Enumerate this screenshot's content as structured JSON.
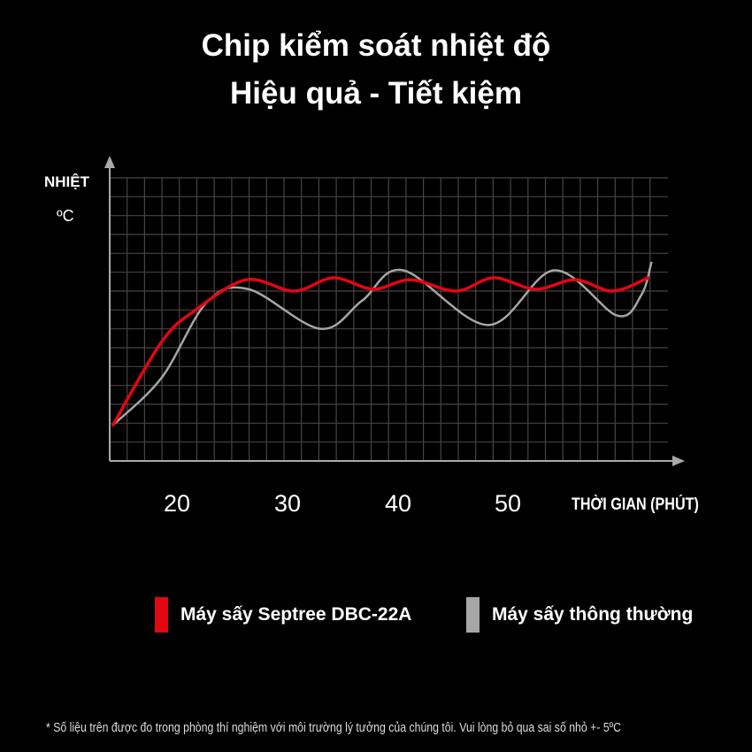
{
  "header": {
    "line1": "Chip kiểm soát nhiệt độ",
    "line2": "Hiệu quả - Tiết kiệm"
  },
  "chart_data": {
    "type": "line",
    "ylabel": "NHIỆT",
    "yunit": "ºC",
    "xlabel": "THỜI GIAN (PHÚT)",
    "xticks": [
      "20",
      "30",
      "40",
      "50"
    ],
    "xtick_values": [
      20,
      30,
      40,
      50
    ],
    "xlim": [
      13.9,
      64.5
    ],
    "ylim": [
      0,
      15
    ],
    "grid": true,
    "legend_position": "bottom",
    "series": [
      {
        "name": "Máy sấy Septree DBC-22A",
        "color": "#e30613",
        "x": [
          14.2,
          18.6,
          21.7,
          26.3,
          30.6,
          34.2,
          37.8,
          41.2,
          45.3,
          48.7,
          52.5,
          56.1,
          59.5,
          62.7
        ],
        "y": [
          1.9,
          6.3,
          8.0,
          9.6,
          9.0,
          9.7,
          9.1,
          9.6,
          9.0,
          9.7,
          9.1,
          9.6,
          9.0,
          9.7
        ]
      },
      {
        "name": "Máy sấy thông thường",
        "color": "#a6a6a6",
        "x": [
          14.2,
          18.6,
          22.7,
          26.5,
          33.0,
          36.8,
          40.5,
          48.2,
          54.2,
          59.9,
          62.1,
          63.0
        ],
        "y": [
          1.9,
          4.4,
          8.4,
          9.1,
          7.0,
          8.5,
          10.1,
          7.2,
          10.1,
          7.7,
          8.8,
          10.5
        ]
      }
    ]
  },
  "footer": {
    "note": "* Số liệu trên được đo trong phòng thí nghiệm với môi trường lý tưởng của chúng tôi. Vui lòng bỏ qua sai số nhỏ +- 5ºC"
  }
}
